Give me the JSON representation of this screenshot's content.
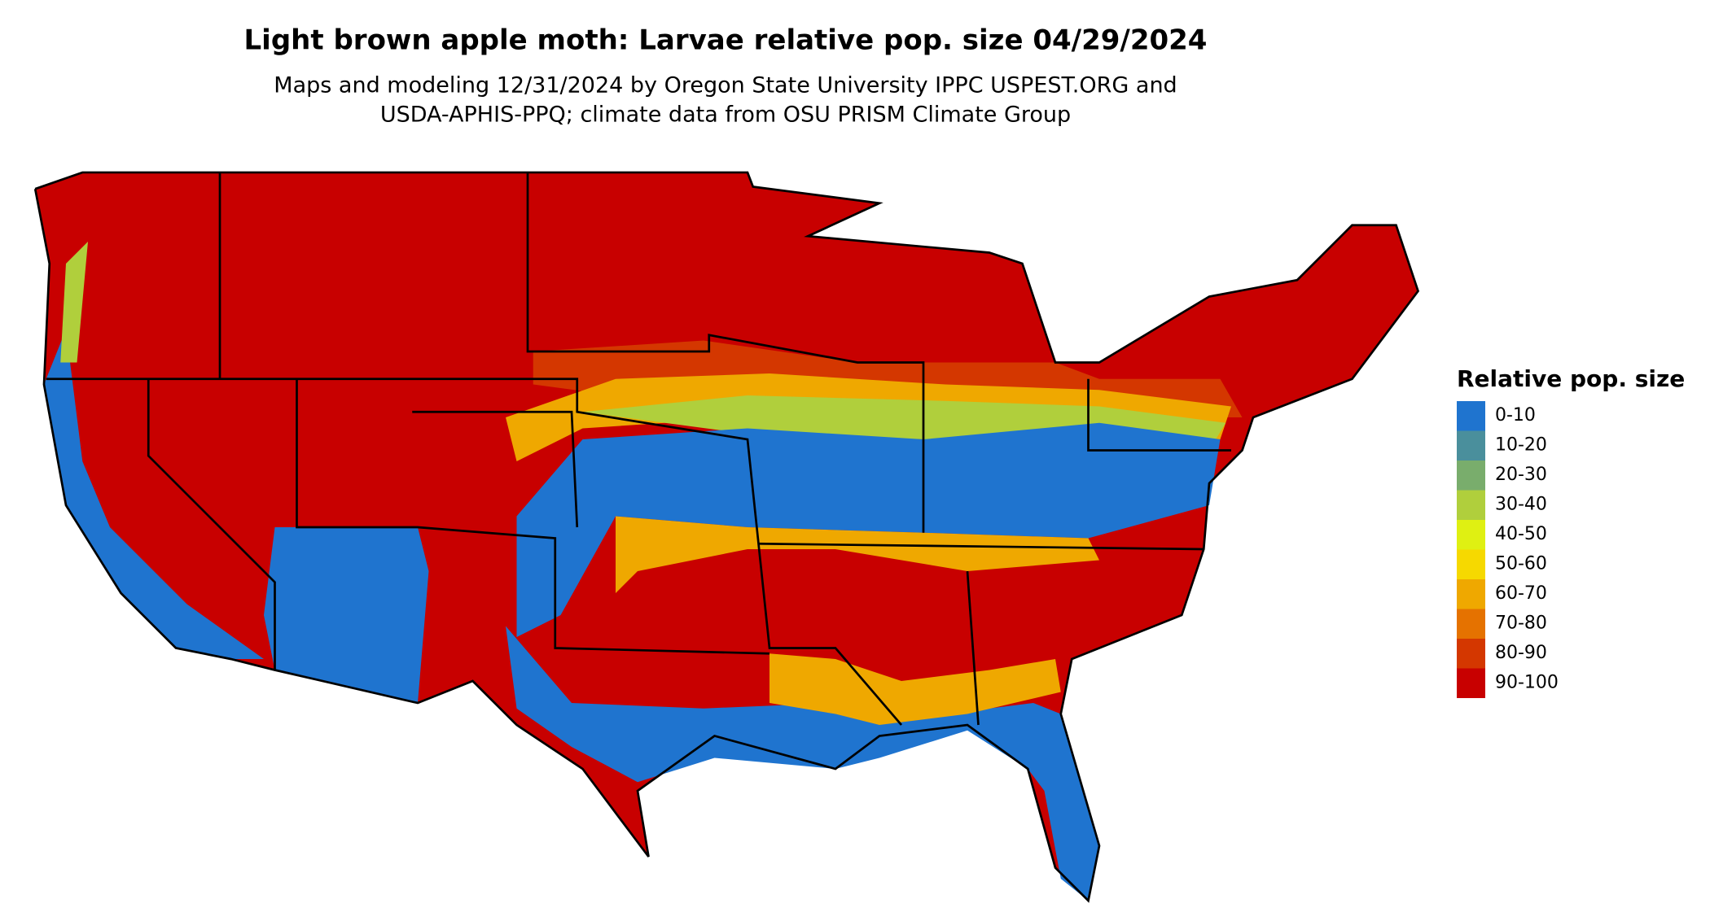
{
  "header": {
    "title": "Light brown apple moth: Larvae relative pop. size 04/29/2024",
    "subtitle_lines": [
      "Maps and modeling 12/31/2024 by Oregon State University IPPC USPEST.ORG and",
      "USDA-APHIS-PPQ; climate data from OSU PRISM Climate Group"
    ]
  },
  "legend": {
    "title": "Relative pop. size",
    "items": [
      {
        "label": "0-10",
        "color": "#1f74cf"
      },
      {
        "label": "10-20",
        "color": "#4a8f9c"
      },
      {
        "label": "20-30",
        "color": "#79ad6c"
      },
      {
        "label": "30-40",
        "color": "#b0cf3c"
      },
      {
        "label": "40-50",
        "color": "#dff012"
      },
      {
        "label": "50-60",
        "color": "#f6d900"
      },
      {
        "label": "60-70",
        "color": "#efa800"
      },
      {
        "label": "70-80",
        "color": "#e57200"
      },
      {
        "label": "80-90",
        "color": "#d43700"
      },
      {
        "label": "90-100",
        "color": "#c80000"
      }
    ]
  }
}
